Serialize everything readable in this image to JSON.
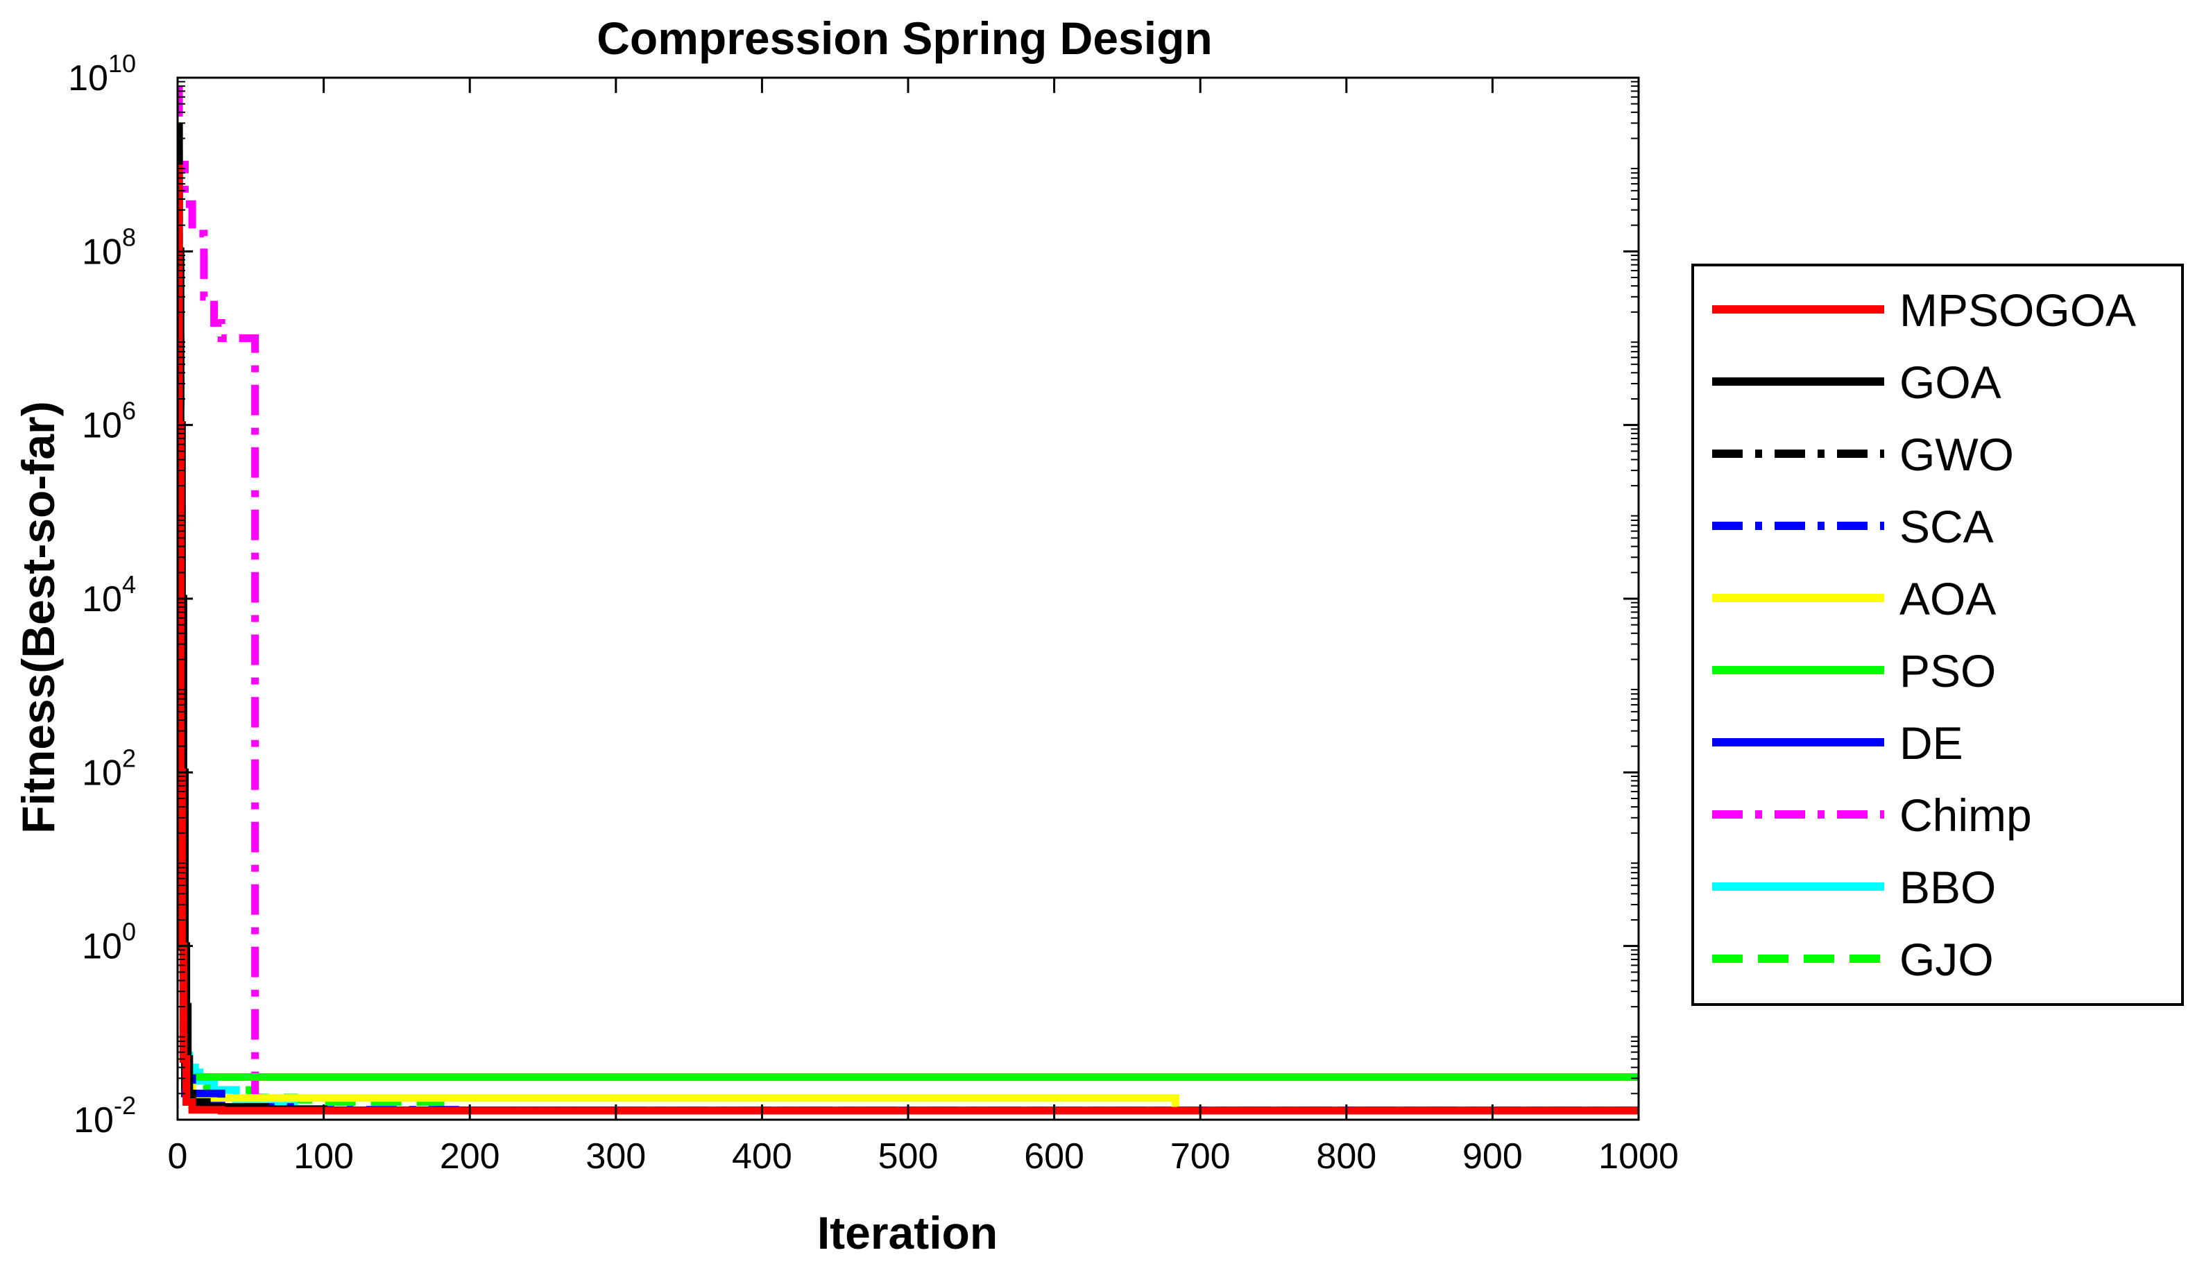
{
  "chart_data": {
    "type": "line",
    "title": "Compression Spring Design",
    "xlabel": "Iteration",
    "ylabel": "Fitness(Best-so-far)",
    "xlim": [
      0,
      1000
    ],
    "ylim": [
      0.01,
      10000000000
    ],
    "yscale": "log",
    "grid": false,
    "legend_position": "outside-right",
    "x_ticks": [
      0,
      100,
      200,
      300,
      400,
      500,
      600,
      700,
      800,
      900,
      1000
    ],
    "y_ticks": [
      {
        "base": "10",
        "exp": "-2",
        "value": 0.01
      },
      {
        "base": "10",
        "exp": "0",
        "value": 1
      },
      {
        "base": "10",
        "exp": "2",
        "value": 100
      },
      {
        "base": "10",
        "exp": "4",
        "value": 10000
      },
      {
        "base": "10",
        "exp": "6",
        "value": 1000000
      },
      {
        "base": "10",
        "exp": "8",
        "value": 100000000
      },
      {
        "base": "10",
        "exp": "10",
        "value": 10000000000
      }
    ],
    "series": [
      {
        "name": "MPSOGOA",
        "color": "#ff0000",
        "dash": "solid",
        "x": [
          1,
          2,
          3,
          4,
          6,
          10,
          30,
          100,
          1000
        ],
        "y": [
          1000000000,
          1000000,
          100,
          1,
          0.05,
          0.016,
          0.013,
          0.0127,
          0.0127
        ]
      },
      {
        "name": "GOA",
        "color": "#000000",
        "dash": "solid",
        "x": [
          1,
          2,
          3,
          4,
          5,
          6,
          7,
          8,
          10,
          20,
          60,
          100,
          300,
          1000
        ],
        "y": [
          3000000000,
          100000000,
          1000000,
          10000,
          100,
          1,
          0.2,
          0.05,
          0.02,
          0.016,
          0.014,
          0.0132,
          0.0128,
          0.0127
        ]
      },
      {
        "name": "GWO",
        "color": "#000000",
        "dash": "dashdot",
        "x": [
          1,
          2,
          3,
          4,
          5,
          8,
          15,
          50,
          200,
          1000
        ],
        "y": [
          500000000,
          10000000,
          10000,
          10,
          0.1,
          0.02,
          0.014,
          0.0132,
          0.0128,
          0.0127
        ]
      },
      {
        "name": "SCA",
        "color": "#0000ff",
        "dash": "dashdot",
        "x": [
          1,
          2,
          3,
          4,
          5,
          10,
          30,
          80,
          200,
          1000
        ],
        "y": [
          800000000,
          10000000,
          10000,
          10,
          0.08,
          0.03,
          0.02,
          0.014,
          0.013,
          0.0128
        ]
      },
      {
        "name": "AOA",
        "color": "#ffff00",
        "dash": "solid",
        "x": [
          1,
          2,
          3,
          4,
          5,
          10,
          20,
          683,
          683,
          1000
        ],
        "y": [
          500000000,
          1000000,
          100,
          1,
          0.05,
          0.025,
          0.0178,
          0.0178,
          0.0127,
          0.0127
        ]
      },
      {
        "name": "PSO",
        "color": "#00ff00",
        "dash": "solid",
        "x": [
          1,
          2,
          3,
          4,
          5,
          6,
          1000
        ],
        "y": [
          1000000000,
          100000000,
          100000,
          100,
          0.5,
          0.031,
          0.031
        ]
      },
      {
        "name": "DE",
        "color": "#0000ff",
        "dash": "solid",
        "x": [
          1,
          2,
          3,
          4,
          5,
          10,
          30,
          60,
          100,
          1000
        ],
        "y": [
          500000000,
          1000000,
          1000,
          1,
          0.06,
          0.02,
          0.015,
          0.0135,
          0.013,
          0.0128
        ]
      },
      {
        "name": "Chimp",
        "color": "#ff00ff",
        "dash": "dashdot",
        "x": [
          1,
          5,
          7,
          10,
          12,
          18,
          22,
          25,
          30,
          35,
          45,
          53,
          53,
          55,
          60,
          100,
          1000
        ],
        "y": [
          8000000000,
          1000000000,
          350000000,
          350000000,
          160000000,
          160000000,
          30000000,
          30000000,
          15000000,
          10000000,
          10000000,
          10000000,
          0.03,
          0.018,
          0.014,
          0.0128,
          0.0128
        ]
      },
      {
        "name": "BBO",
        "color": "#00ffff",
        "dash": "solid",
        "x": [
          1,
          2,
          3,
          4,
          5,
          6,
          8,
          12,
          15,
          25,
          40,
          60,
          80,
          100,
          190,
          1000
        ],
        "y": [
          1500000000,
          100000000,
          10000,
          1,
          0.07,
          0.05,
          0.055,
          0.04,
          0.035,
          0.028,
          0.022,
          0.017,
          0.0145,
          0.0133,
          0.0128,
          0.0127
        ]
      },
      {
        "name": "GJO",
        "color": "#00ff00",
        "dash": "dashed",
        "x": [
          1,
          2,
          3,
          4,
          5,
          8,
          10,
          20,
          50,
          80,
          100,
          180,
          190,
          1000
        ],
        "y": [
          1500000000,
          10000000,
          1000,
          1,
          0.05,
          0.04,
          0.03,
          0.025,
          0.022,
          0.018,
          0.017,
          0.016,
          0.0127,
          0.0127
        ]
      }
    ]
  }
}
